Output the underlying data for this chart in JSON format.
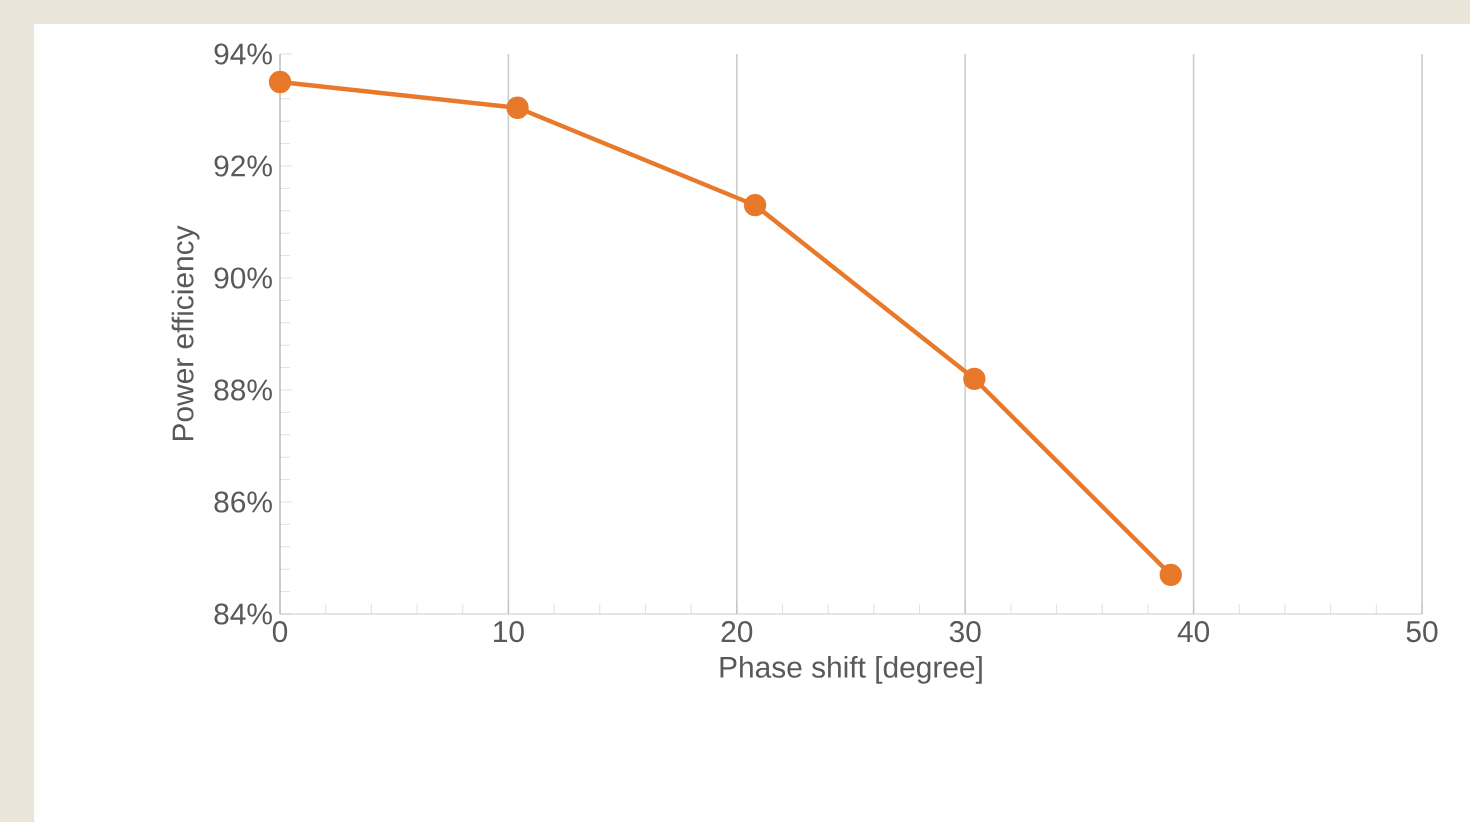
{
  "chart_data": {
    "type": "line",
    "xlabel": "Phase shift [degree]",
    "ylabel": "Power efficiency",
    "x": [
      0,
      10.4,
      20.8,
      30.4,
      39
    ],
    "series": [
      {
        "color": "#e8782a",
        "values": [
          93.5,
          93.04,
          91.3,
          88.2,
          84.7
        ]
      }
    ],
    "xlim": [
      0,
      50
    ],
    "xticks": [
      0,
      10,
      20,
      30,
      40,
      50
    ],
    "ylim": [
      84,
      94
    ],
    "yticks": [
      {
        "value": 84,
        "label": "84%"
      },
      {
        "value": 86,
        "label": "86%"
      },
      {
        "value": 88,
        "label": "88%"
      },
      {
        "value": 90,
        "label": "90%"
      },
      {
        "value": 92,
        "label": "92%"
      },
      {
        "value": 94,
        "label": "94%"
      }
    ],
    "grid": "x",
    "marker": "circle",
    "line_style": "solid"
  }
}
